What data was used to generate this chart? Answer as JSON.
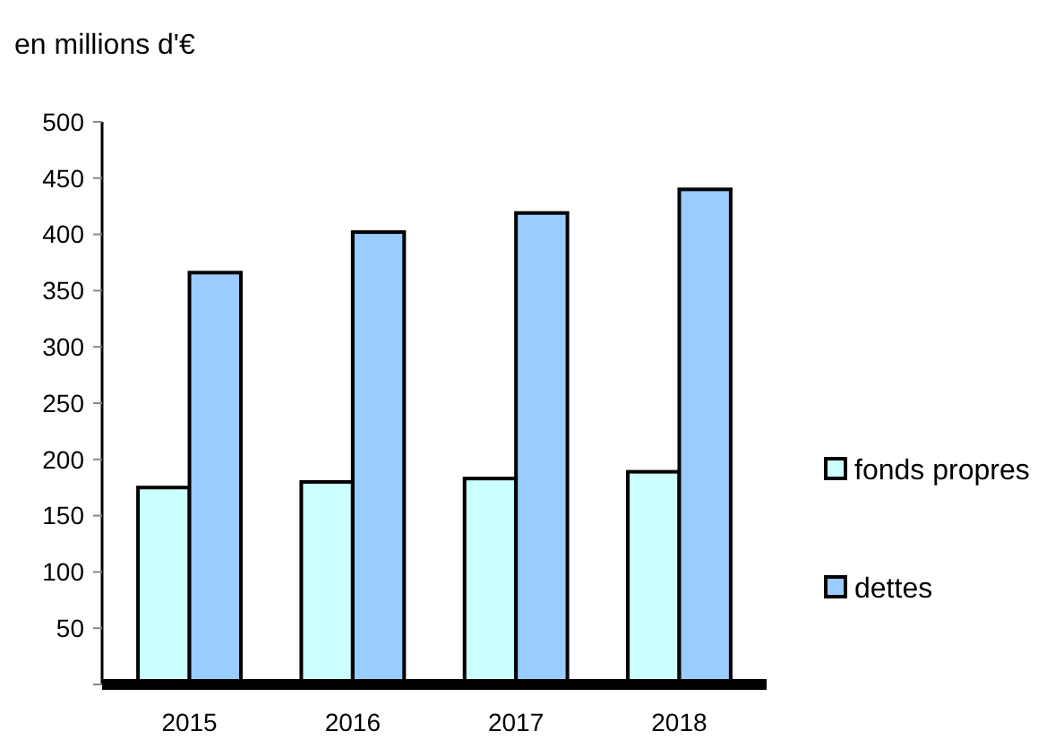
{
  "chart_data": {
    "type": "bar",
    "title": "en millions d'€",
    "categories": [
      "2015",
      "2016",
      "2017",
      "2018"
    ],
    "series": [
      {
        "name": "fonds propres",
        "color": "#ccffff",
        "values": [
          175,
          180,
          183,
          189
        ]
      },
      {
        "name": "dettes",
        "color": "#99ccff",
        "values": [
          366,
          402,
          419,
          440
        ]
      }
    ],
    "ylim": [
      0,
      500
    ],
    "yticks": [
      {
        "value": 0,
        "label": null
      },
      50,
      100,
      150,
      200,
      250,
      300,
      350,
      400,
      450,
      500
    ],
    "grid": false,
    "legend": "right"
  }
}
